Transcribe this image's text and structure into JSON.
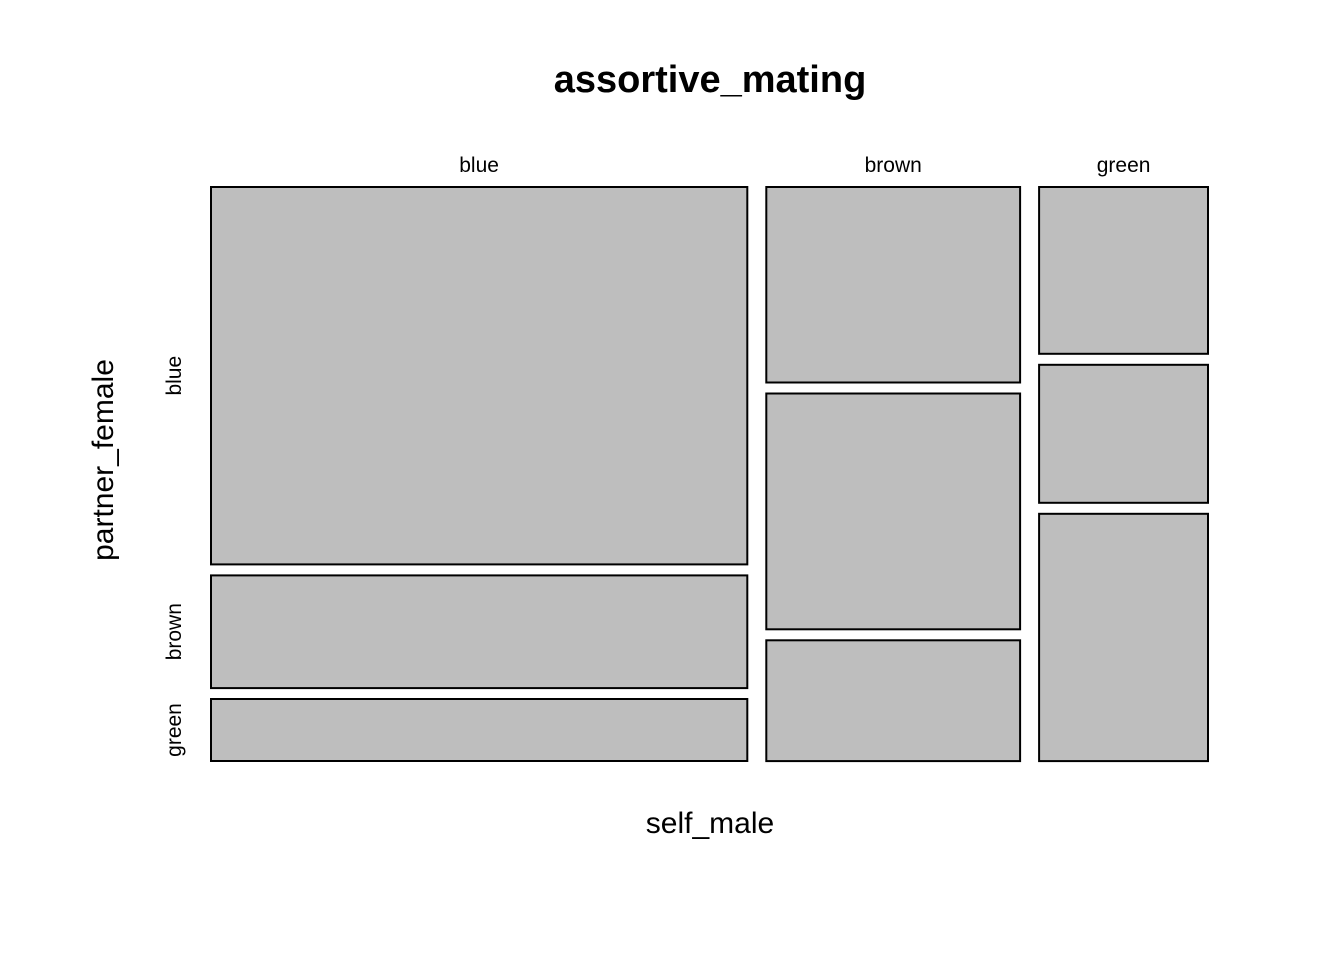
{
  "chart_data": {
    "type": "mosaic",
    "title": "assortive_mating",
    "xlabel": "self_male",
    "ylabel": "partner_female",
    "x_categories": [
      "blue",
      "brown",
      "green"
    ],
    "y_categories": [
      "blue",
      "brown",
      "green"
    ],
    "column_proportions": [
      0.543,
      0.257,
      0.171
    ],
    "cells": [
      {
        "self_male": "blue",
        "partner_female": "blue",
        "proportion": 0.67
      },
      {
        "self_male": "blue",
        "partner_female": "brown",
        "proportion": 0.2
      },
      {
        "self_male": "blue",
        "partner_female": "green",
        "proportion": 0.11
      },
      {
        "self_male": "brown",
        "partner_female": "blue",
        "proportion": 0.34
      },
      {
        "self_male": "brown",
        "partner_female": "brown",
        "proportion": 0.41
      },
      {
        "self_male": "brown",
        "partner_female": "green",
        "proportion": 0.21
      },
      {
        "self_male": "green",
        "partner_female": "blue",
        "proportion": 0.29
      },
      {
        "self_male": "green",
        "partner_female": "brown",
        "proportion": 0.24
      },
      {
        "self_male": "green",
        "partner_female": "green",
        "proportion": 0.43
      }
    ],
    "fill_color": "#bebebe",
    "stroke_color": "#000000"
  }
}
